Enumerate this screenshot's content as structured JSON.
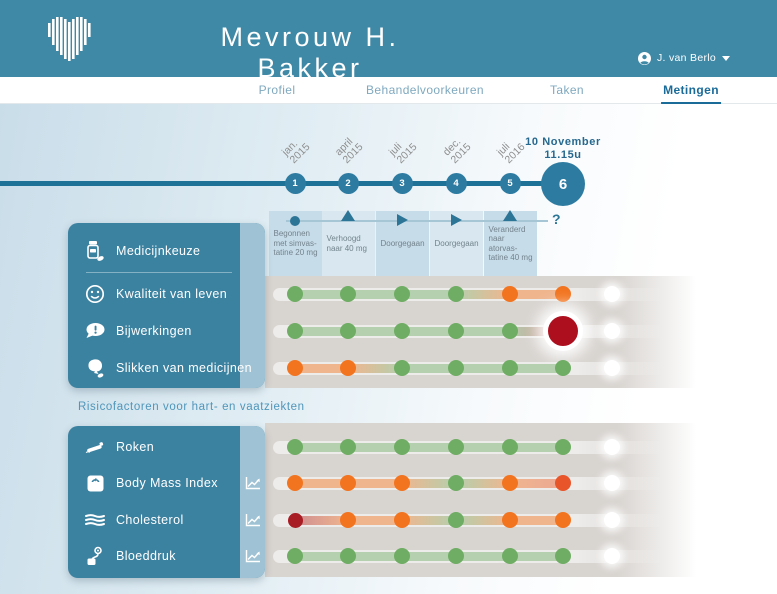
{
  "header": {
    "title": "Mevrouw H. Bakker",
    "user": {
      "name": "J. van Berlo"
    }
  },
  "nav": {
    "tabs": [
      {
        "label": "Profiel",
        "active": false
      },
      {
        "label": "Behandelvoorkeuren",
        "active": false
      },
      {
        "label": "Taken",
        "active": false
      },
      {
        "label": "Metingen",
        "active": true
      }
    ]
  },
  "timeline": {
    "points": [
      {
        "number": "1",
        "month": "jan.",
        "year": "2015"
      },
      {
        "number": "2",
        "month": "april",
        "year": "2015"
      },
      {
        "number": "3",
        "month": "juli",
        "year": "2015"
      },
      {
        "number": "4",
        "month": "dec.",
        "year": "2015"
      },
      {
        "number": "5",
        "month": "juli",
        "year": "2016"
      }
    ],
    "current": {
      "number": "6",
      "date": "10 November",
      "time": "11.15u"
    },
    "question_mark": "?"
  },
  "medication": {
    "events": [
      {
        "marker": "circle",
        "label": "Begonnen\nmet simvas-\ntatine 20 mg"
      },
      {
        "marker": "triangle-up",
        "label": "Verhoogd\nnaar 40 mg"
      },
      {
        "marker": "triangle-right",
        "label": "Doorgegaan"
      },
      {
        "marker": "triangle-right",
        "label": "Doorgegaan"
      },
      {
        "marker": "triangle-up",
        "label": "Veranderd\nnaar atorvas-\ntatine 40 mg"
      }
    ]
  },
  "panel_measurements": {
    "rows": [
      {
        "icon": "pill-bottle",
        "label": "Medicijnkeuze"
      },
      {
        "icon": "smiley",
        "label": "Kwaliteit van leven"
      },
      {
        "icon": "speech-bubble",
        "label": "Bijwerkingen"
      },
      {
        "icon": "swallow-pill",
        "label": "Slikken van medicijnen"
      }
    ]
  },
  "risk_section": {
    "heading": "Risicofactoren voor hart- en vaatziekten",
    "rows": [
      {
        "icon": "cigarette",
        "label": "Roken",
        "has_chart": false
      },
      {
        "icon": "weight-scale",
        "label": "Body Mass Index",
        "has_chart": true
      },
      {
        "icon": "cholesterol",
        "label": "Cholesterol",
        "has_chart": true
      },
      {
        "icon": "blood-pressure",
        "label": "Bloeddruk",
        "has_chart": true
      }
    ]
  },
  "chart_data": [
    {
      "type": "dot-matrix",
      "title": "",
      "columns": [
        "jan. 2015",
        "april 2015",
        "juli 2015",
        "dec. 2015",
        "juli 2016",
        "10 November 11.15u",
        ""
      ],
      "series": [
        {
          "name": "Kwaliteit van leven",
          "values": [
            "green",
            "green",
            "green",
            "green",
            "orange",
            "orange",
            "empty"
          ]
        },
        {
          "name": "Bijwerkingen",
          "values": [
            "green",
            "green",
            "green",
            "green",
            "green",
            "red-highlight",
            "empty"
          ]
        },
        {
          "name": "Slikken van medicijnen",
          "values": [
            "orange",
            "orange",
            "green",
            "green",
            "green",
            "green",
            "empty"
          ]
        }
      ]
    },
    {
      "type": "dot-matrix",
      "title": "Risicofactoren voor hart- en vaatziekten",
      "columns": [
        "jan. 2015",
        "april 2015",
        "juli 2015",
        "dec. 2015",
        "juli 2016",
        "10 November 11.15u",
        ""
      ],
      "series": [
        {
          "name": "Roken",
          "values": [
            "green",
            "green",
            "green",
            "green",
            "green",
            "green",
            "empty"
          ]
        },
        {
          "name": "Body Mass Index",
          "values": [
            "orange",
            "orange",
            "orange",
            "green",
            "orange",
            "orange-red",
            "empty"
          ]
        },
        {
          "name": "Cholesterol",
          "values": [
            "dark-red",
            "orange",
            "orange",
            "green",
            "orange",
            "orange",
            "empty"
          ]
        },
        {
          "name": "Bloeddruk",
          "values": [
            "green",
            "green",
            "green",
            "green",
            "green",
            "green",
            "empty"
          ]
        }
      ]
    }
  ],
  "colors": {
    "green": "#6fad64",
    "orange": "#f2741f",
    "orange_red": "#e8552a",
    "dark_red": "#a81c24",
    "red_highlight": "#ae0f1f",
    "empty_dot": "#ffffff",
    "header_bg": "#3f89a7",
    "panel_bg": "#3b81a0",
    "panel_strip": "#9fc3d4",
    "timeline_line": "#1f7297",
    "accent_circle": "#2e7ba1",
    "tab_active": "#1b6b99",
    "tab_inactive": "#7fa9bf",
    "risk_heading_color": "#4f96ba",
    "current_date_color": "#26688e",
    "grid_bg": "#d8d4d0"
  }
}
